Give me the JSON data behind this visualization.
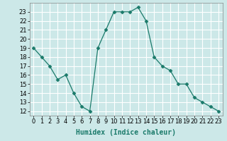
{
  "x": [
    0,
    1,
    2,
    3,
    4,
    5,
    6,
    7,
    8,
    9,
    10,
    11,
    12,
    13,
    14,
    15,
    16,
    17,
    18,
    19,
    20,
    21,
    22,
    23
  ],
  "y": [
    19,
    18,
    17,
    15.5,
    16,
    14,
    12.5,
    12,
    19,
    21,
    23,
    23,
    23,
    23.5,
    22,
    18,
    17,
    16.5,
    15,
    15,
    13.5,
    13,
    12.5,
    12
  ],
  "line_color": "#1a7a6a",
  "marker": "D",
  "marker_size": 2.5,
  "bg_color": "#cce8e8",
  "grid_color": "#ffffff",
  "xlabel": "Humidex (Indice chaleur)",
  "xlim": [
    -0.5,
    23.5
  ],
  "ylim": [
    11.5,
    24
  ],
  "xtick_labels": [
    "0",
    "1",
    "2",
    "3",
    "4",
    "5",
    "6",
    "7",
    "8",
    "9",
    "10",
    "11",
    "12",
    "13",
    "14",
    "15",
    "16",
    "17",
    "18",
    "19",
    "20",
    "21",
    "22",
    "23"
  ],
  "yticks": [
    12,
    13,
    14,
    15,
    16,
    17,
    18,
    19,
    20,
    21,
    22,
    23
  ],
  "xlabel_fontsize": 7,
  "tick_fontsize": 6
}
